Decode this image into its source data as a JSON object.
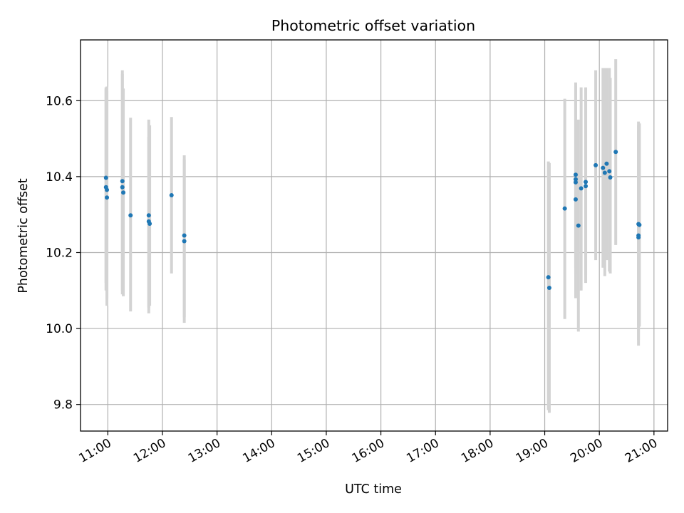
{
  "chart_data": {
    "type": "scatter",
    "title": "Photometric offset variation",
    "xlabel": "UTC time",
    "ylabel": "Photometric offset",
    "xlim": [
      "10:30",
      "21:15"
    ],
    "ylim": [
      9.73,
      10.76
    ],
    "grid": true,
    "x_ticks": [
      "11:00",
      "12:00",
      "13:00",
      "14:00",
      "15:00",
      "16:00",
      "17:00",
      "18:00",
      "19:00",
      "20:00",
      "21:00"
    ],
    "y_ticks": [
      "9.8",
      "10.0",
      "10.2",
      "10.4",
      "10.6"
    ],
    "marker_color": "#1f77b4",
    "errorbar_color": "#d3d3d3",
    "points": [
      {
        "time": "10:58",
        "y": 10.397,
        "ylow": 10.12,
        "yhigh": 10.635
      },
      {
        "time": "10:58",
        "y": 10.372,
        "ylow": 10.1,
        "yhigh": 10.63
      },
      {
        "time": "10:59",
        "y": 10.365,
        "ylow": 10.08,
        "yhigh": 10.625
      },
      {
        "time": "10:59",
        "y": 10.345,
        "ylow": 10.06,
        "yhigh": 10.637
      },
      {
        "time": "11:16",
        "y": 10.388,
        "ylow": 10.1,
        "yhigh": 10.68
      },
      {
        "time": "11:16",
        "y": 10.372,
        "ylow": 10.09,
        "yhigh": 10.67
      },
      {
        "time": "11:17",
        "y": 10.358,
        "ylow": 10.085,
        "yhigh": 10.632
      },
      {
        "time": "11:25",
        "y": 10.298,
        "ylow": 10.045,
        "yhigh": 10.555
      },
      {
        "time": "11:45",
        "y": 10.298,
        "ylow": 10.055,
        "yhigh": 10.505
      },
      {
        "time": "11:45",
        "y": 10.282,
        "ylow": 10.04,
        "yhigh": 10.55
      },
      {
        "time": "11:46",
        "y": 10.276,
        "ylow": 10.06,
        "yhigh": 10.535
      },
      {
        "time": "12:10",
        "y": 10.351,
        "ylow": 10.145,
        "yhigh": 10.557
      },
      {
        "time": "12:24",
        "y": 10.245,
        "ylow": 10.03,
        "yhigh": 10.456
      },
      {
        "time": "12:24",
        "y": 10.23,
        "ylow": 10.015,
        "yhigh": 10.445
      },
      {
        "time": "19:04",
        "y": 10.135,
        "ylow": 9.785,
        "yhigh": 10.44
      },
      {
        "time": "19:05",
        "y": 10.107,
        "ylow": 9.778,
        "yhigh": 10.436
      },
      {
        "time": "19:22",
        "y": 10.316,
        "ylow": 10.025,
        "yhigh": 10.605
      },
      {
        "time": "19:34",
        "y": 10.405,
        "ylow": 10.16,
        "yhigh": 10.648
      },
      {
        "time": "19:34",
        "y": 10.393,
        "ylow": 10.15,
        "yhigh": 10.64
      },
      {
        "time": "19:34",
        "y": 10.385,
        "ylow": 10.145,
        "yhigh": 10.635
      },
      {
        "time": "19:34",
        "y": 10.34,
        "ylow": 10.08,
        "yhigh": 10.6
      },
      {
        "time": "19:37",
        "y": 10.271,
        "ylow": 9.992,
        "yhigh": 10.55
      },
      {
        "time": "19:40",
        "y": 10.369,
        "ylow": 10.1,
        "yhigh": 10.635
      },
      {
        "time": "19:45",
        "y": 10.386,
        "ylow": 10.12,
        "yhigh": 10.635
      },
      {
        "time": "19:45",
        "y": 10.375,
        "ylow": 10.14,
        "yhigh": 10.6
      },
      {
        "time": "19:56",
        "y": 10.43,
        "ylow": 10.18,
        "yhigh": 10.68
      },
      {
        "time": "20:04",
        "y": 10.423,
        "ylow": 10.16,
        "yhigh": 10.686
      },
      {
        "time": "20:06",
        "y": 10.41,
        "ylow": 10.138,
        "yhigh": 10.686
      },
      {
        "time": "20:08",
        "y": 10.434,
        "ylow": 10.18,
        "yhigh": 10.686
      },
      {
        "time": "20:11",
        "y": 10.414,
        "ylow": 10.15,
        "yhigh": 10.686
      },
      {
        "time": "20:12",
        "y": 10.398,
        "ylow": 10.145,
        "yhigh": 10.66
      },
      {
        "time": "20:18",
        "y": 10.465,
        "ylow": 10.22,
        "yhigh": 10.709
      },
      {
        "time": "20:43",
        "y": 10.275,
        "ylow": 10.01,
        "yhigh": 10.545
      },
      {
        "time": "20:43",
        "y": 10.245,
        "ylow": 9.955,
        "yhigh": 10.535
      },
      {
        "time": "20:43",
        "y": 10.24,
        "ylow": 9.97,
        "yhigh": 10.52
      },
      {
        "time": "20:44",
        "y": 10.273,
        "ylow": 10.005,
        "yhigh": 10.54
      }
    ]
  }
}
